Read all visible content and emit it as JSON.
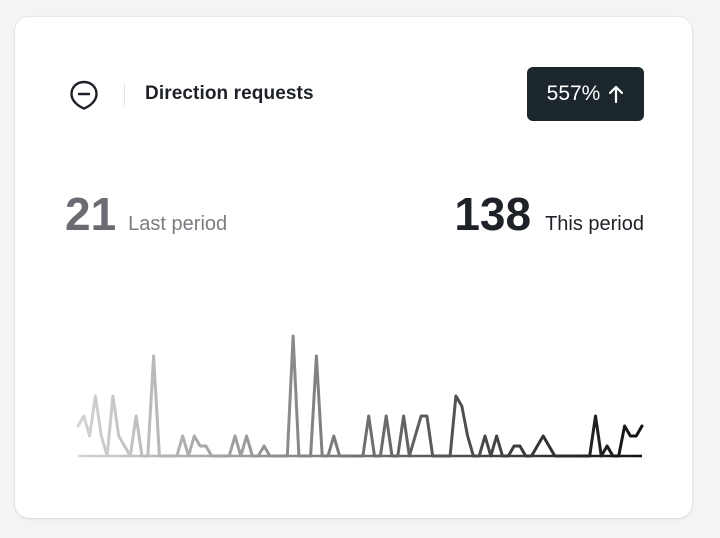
{
  "card": {
    "title": "Direction requests",
    "icon": "map-pin-icon",
    "change_badge": {
      "value": "557%",
      "direction": "up",
      "icon": "arrow-up-icon",
      "bg_color": "#1c262d"
    }
  },
  "stats": {
    "last_period": {
      "value": "21",
      "label": "Last period"
    },
    "this_period": {
      "value": "138",
      "label": "This period"
    }
  },
  "chart_data": {
    "type": "line",
    "title": "",
    "xlabel": "",
    "ylabel": "",
    "style": "sparkline with gradient from light gray (older) to black (recent)",
    "colors": {
      "start": "#d4d4d4",
      "end": "#111111"
    },
    "ylim": [
      0,
      8
    ],
    "values": [
      1.5,
      2,
      1,
      3,
      1,
      0,
      3,
      1,
      0.5,
      0,
      2,
      0,
      0,
      5,
      0,
      0,
      0,
      0,
      1,
      0,
      1,
      0.5,
      0.5,
      0,
      0,
      0,
      0,
      1,
      0,
      1,
      0,
      0,
      0.5,
      0,
      0,
      0,
      0,
      6,
      0,
      0,
      0,
      5,
      0,
      0,
      1,
      0,
      0,
      0,
      0,
      0,
      2,
      0,
      0,
      2,
      0,
      0,
      2,
      0,
      1,
      2,
      2,
      0,
      0,
      0,
      0,
      3,
      2.5,
      1,
      0,
      0,
      1,
      0,
      1,
      0,
      0,
      0.5,
      0.5,
      0,
      0,
      0.5,
      1,
      0.5,
      0,
      0,
      0,
      0,
      0,
      0,
      0,
      2,
      0,
      0.5,
      0,
      0,
      1.5,
      1,
      1,
      1.5
    ]
  }
}
